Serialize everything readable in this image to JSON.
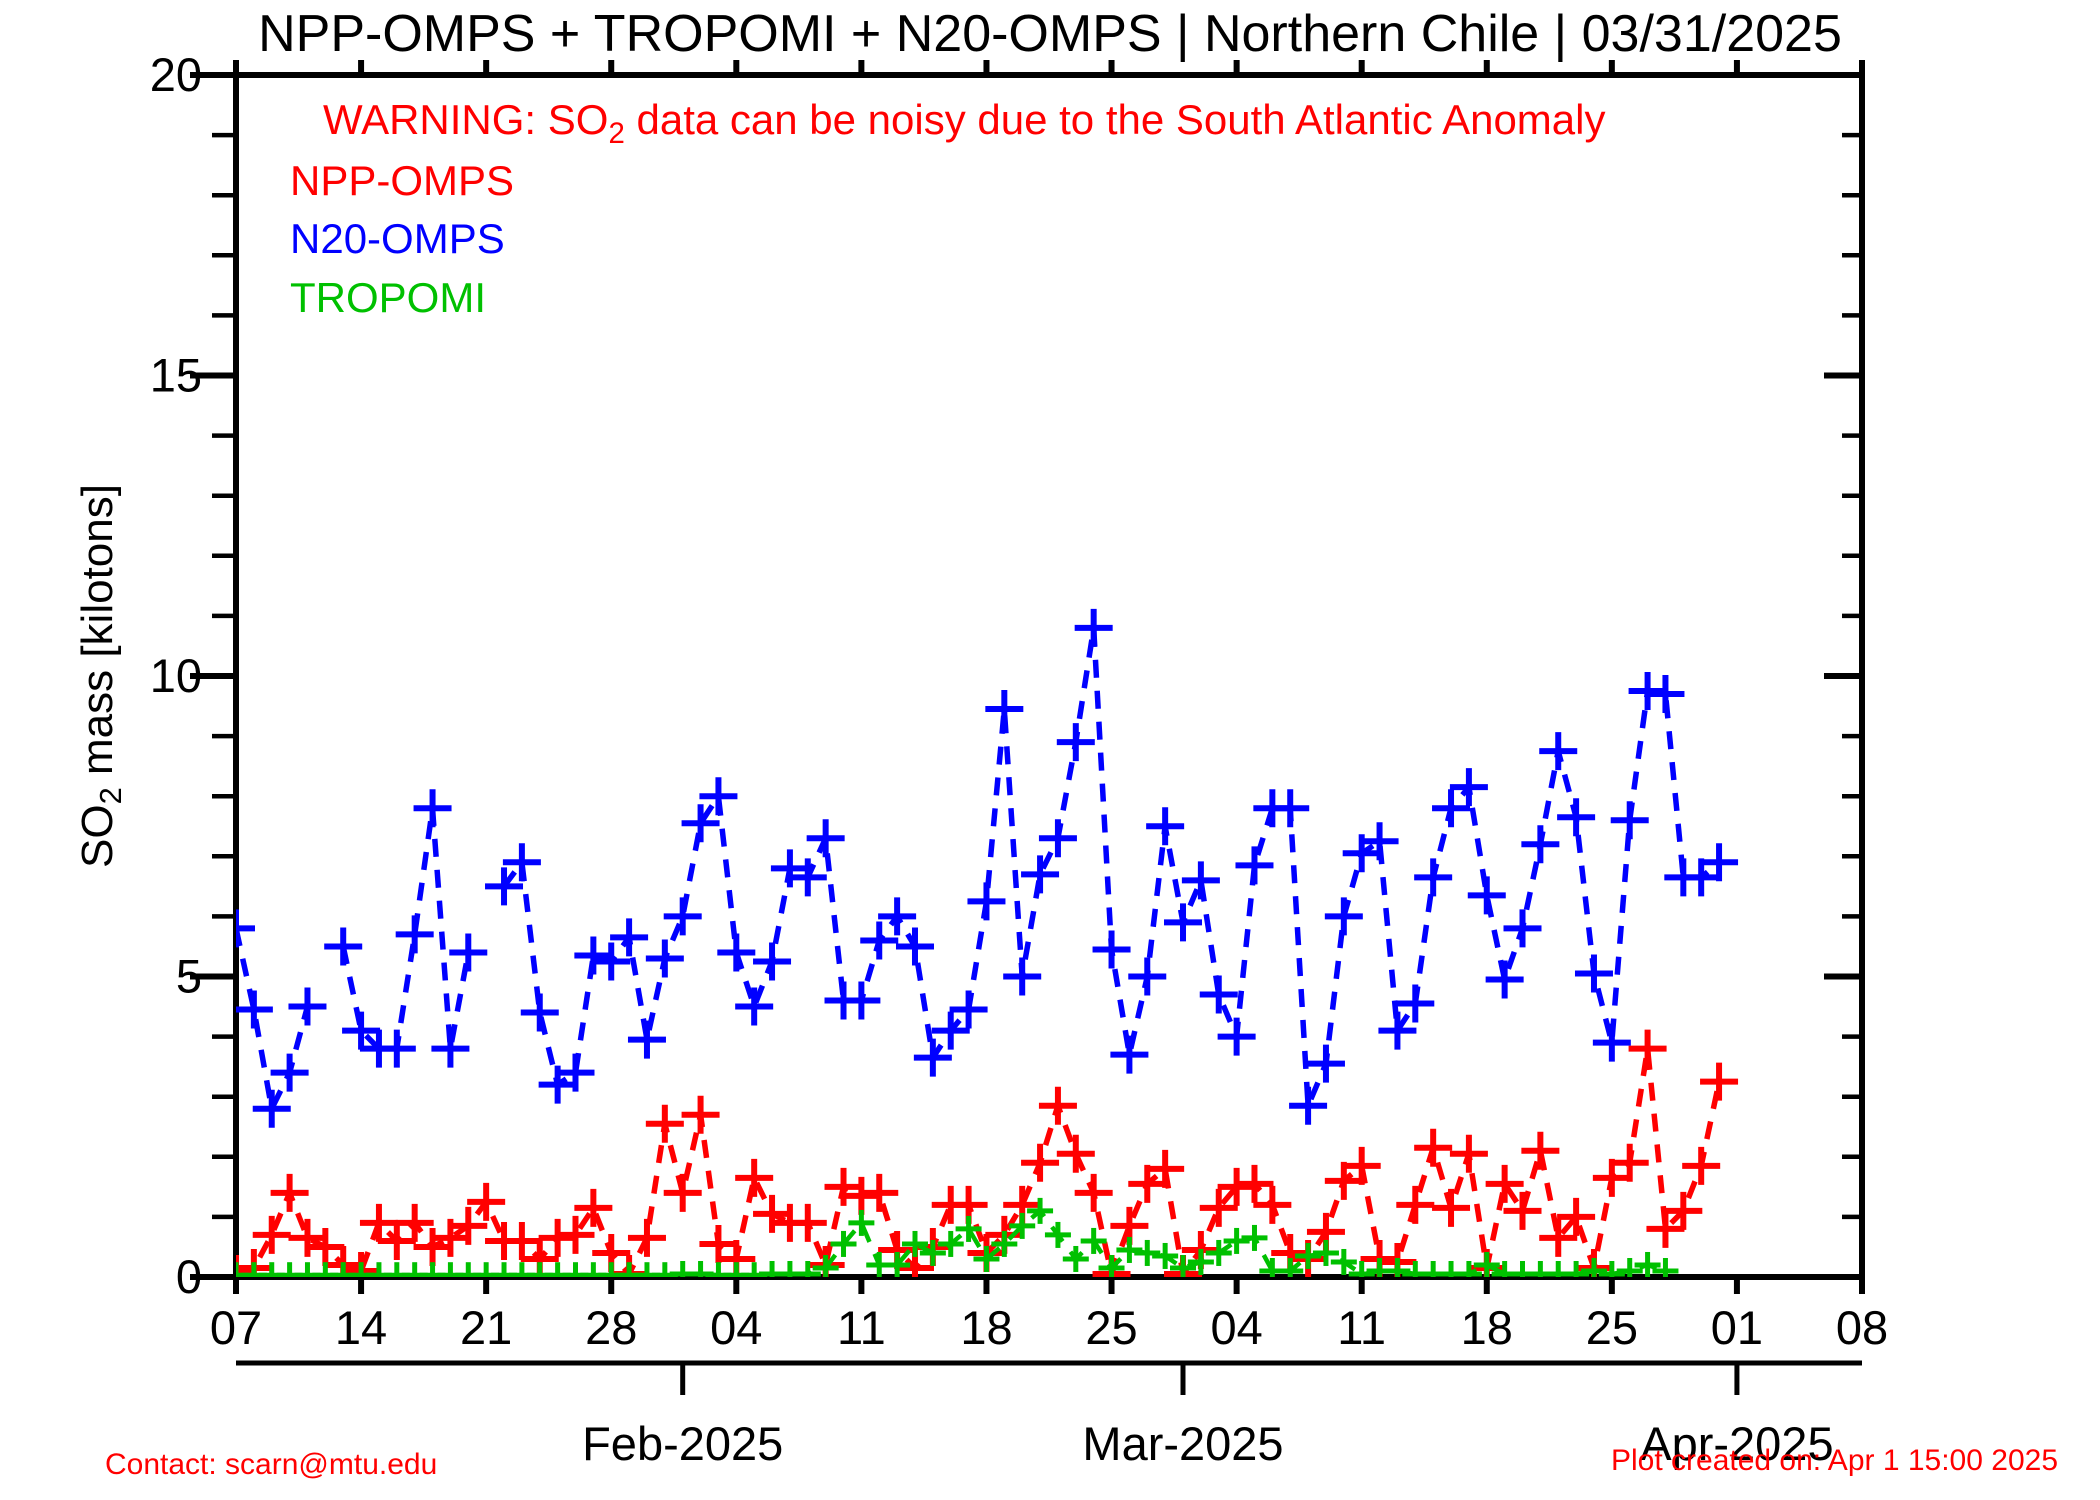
{
  "ui": {
    "title": "NPP-OMPS + TROPOMI + N20-OMPS | Northern Chile | 03/31/2025",
    "warning": {
      "pre": "WARNING: SO",
      "sub": "2",
      "post": " data can be noisy due to the South Atlantic Anomaly",
      "color": "#ff0000"
    },
    "legend": [
      {
        "label": "NPP-OMPS",
        "color": "#ff0000"
      },
      {
        "label": "N20-OMPS",
        "color": "#0000ff"
      },
      {
        "label": "TROPOMI",
        "color": "#00c000"
      }
    ],
    "ylabel": {
      "pre": "SO",
      "sub": "2",
      "post": " mass [kilotons]"
    },
    "footer_left": "Contact: scarn@mtu.edu",
    "footer_right": "Plot created on: Apr  1 15:00 2025",
    "footer_color": "#ff0000"
  },
  "chart_data": {
    "type": "line",
    "title": "NPP-OMPS + TROPOMI + N20-OMPS | Northern Chile | 03/31/2025",
    "xlabel": "",
    "ylabel": "SO2 mass [kilotons]",
    "grid": false,
    "legend_position": "top-left-inside",
    "x_start_date": "2025-01-07",
    "x_interval_days": 1,
    "x_axis_range_days": [
      0,
      91
    ],
    "x_ticks": {
      "days": [
        0,
        7,
        14,
        21,
        28,
        35,
        42,
        49,
        56,
        63,
        70,
        77,
        84,
        91
      ],
      "labels": [
        "07",
        "14",
        "21",
        "28",
        "04",
        "11",
        "18",
        "25",
        "04",
        "11",
        "18",
        "25",
        "01",
        "08"
      ]
    },
    "month_axis": [
      {
        "day": 25,
        "label": "Feb-2025"
      },
      {
        "day": 53,
        "label": "Mar-2025"
      },
      {
        "day": 84,
        "label": "Apr-2025"
      }
    ],
    "y_axis": {
      "min": 0,
      "max": 20,
      "major_tick": 5,
      "minor_tick": 1,
      "tick_labels": [
        "0",
        "5",
        "10",
        "15",
        "20"
      ]
    },
    "series": [
      {
        "name": "NPP-OMPS",
        "color": "#ff0000",
        "marker": "plus",
        "line_style": "dashed",
        "values": [
          0.05,
          0.15,
          0.7,
          1.4,
          0.65,
          0.5,
          0.2,
          0.1,
          0.9,
          0.6,
          0.9,
          0.5,
          0.65,
          0.85,
          1.25,
          0.6,
          0.6,
          0.3,
          0.65,
          0.7,
          1.15,
          0.4,
          0.05,
          0.65,
          2.55,
          1.4,
          2.7,
          0.55,
          0.3,
          1.65,
          1.05,
          0.9,
          0.9,
          0.2,
          1.5,
          1.35,
          1.4,
          0.45,
          0.15,
          0.5,
          1.2,
          1.2,
          0.4,
          0.7,
          1.2,
          1.9,
          2.85,
          2.05,
          1.4,
          0.05,
          0.85,
          1.55,
          1.8,
          0.05,
          0.45,
          1.15,
          1.5,
          1.55,
          1.2,
          0.4,
          0.3,
          0.75,
          1.6,
          1.85,
          0.3,
          0.25,
          1.2,
          2.15,
          1.15,
          2.05,
          0.15,
          1.55,
          1.1,
          2.1,
          0.65,
          1.0,
          0.15,
          1.65,
          1.9,
          3.8,
          0.8,
          1.1,
          1.85,
          3.25
        ]
      },
      {
        "name": "N20-OMPS",
        "color": "#0000ff",
        "marker": "plus",
        "line_style": "dashed",
        "values": [
          5.8,
          4.45,
          2.8,
          3.4,
          4.5,
          null,
          5.5,
          4.1,
          3.8,
          3.8,
          5.7,
          7.8,
          3.8,
          5.4,
          null,
          6.5,
          6.9,
          4.4,
          3.2,
          3.4,
          5.35,
          5.25,
          5.65,
          3.95,
          5.3,
          6.0,
          7.55,
          8.0,
          5.4,
          4.5,
          5.25,
          6.8,
          6.65,
          7.3,
          4.6,
          4.6,
          5.6,
          6.0,
          5.5,
          3.65,
          4.1,
          4.45,
          6.25,
          9.45,
          5.0,
          6.7,
          7.3,
          8.9,
          10.8,
          5.45,
          3.7,
          5.0,
          7.5,
          5.9,
          6.6,
          4.7,
          4.0,
          6.85,
          7.8,
          7.8,
          2.85,
          3.55,
          6.0,
          7.05,
          7.25,
          4.1,
          4.55,
          6.65,
          7.8,
          8.15,
          6.35,
          4.95,
          5.8,
          7.2,
          8.75,
          7.65,
          5.05,
          3.9,
          7.6,
          9.75,
          9.7,
          6.65,
          6.65,
          6.9
        ]
      },
      {
        "name": "TROPOMI",
        "color": "#00c000",
        "marker": "plus",
        "line_style": "dashed",
        "values": [
          0.03,
          0.03,
          0.03,
          0.03,
          0.03,
          0.03,
          0.03,
          0.03,
          0.03,
          0.03,
          0.03,
          0.03,
          0.03,
          0.03,
          0.03,
          0.03,
          0.03,
          0.03,
          0.03,
          0.03,
          0.03,
          0.03,
          0.03,
          0.03,
          0.03,
          0.05,
          0.05,
          0.03,
          0.03,
          0.03,
          0.05,
          0.05,
          0.05,
          0.15,
          0.55,
          0.9,
          0.2,
          0.2,
          0.55,
          0.4,
          0.55,
          0.8,
          0.3,
          0.55,
          0.85,
          1.1,
          0.7,
          0.3,
          0.6,
          0.15,
          0.45,
          0.4,
          0.35,
          0.15,
          0.25,
          0.4,
          0.6,
          0.65,
          0.1,
          0.1,
          0.35,
          0.4,
          0.25,
          0.05,
          0.1,
          0.1,
          0.05,
          0.05,
          0.05,
          0.05,
          0.2,
          0.05,
          0.05,
          0.05,
          0.05,
          0.05,
          0.1,
          0.05,
          0.1,
          0.2,
          0.1,
          null,
          null,
          null
        ]
      }
    ]
  }
}
